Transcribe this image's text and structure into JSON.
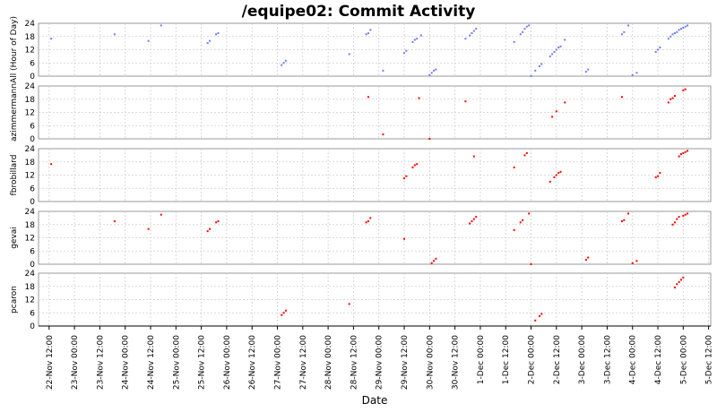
{
  "chart_data": {
    "type": "scatter",
    "title": "/equipe02: Commit Activity",
    "xlabel": "Date",
    "colors": {
      "all": "#6f7cf2",
      "author": "#ff0000"
    },
    "x_ticks": [
      "22-Nov 12:00",
      "23-Nov 00:00",
      "23-Nov 12:00",
      "24-Nov 00:00",
      "24-Nov 12:00",
      "25-Nov 00:00",
      "25-Nov 12:00",
      "26-Nov 00:00",
      "26-Nov 12:00",
      "27-Nov 00:00",
      "27-Nov 12:00",
      "28-Nov 00:00",
      "28-Nov 12:00",
      "29-Nov 00:00",
      "29-Nov 12:00",
      "30-Nov 00:00",
      "30-Nov 12:00",
      "1-Dec 00:00",
      "1-Dec 12:00",
      "2-Dec 00:00",
      "2-Dec 12:00",
      "3-Dec 00:00",
      "3-Dec 12:00",
      "4-Dec 00:00",
      "4-Dec 12:00",
      "5-Dec 00:00",
      "5-Dec 12:00"
    ],
    "x_range": [
      "2008-11-22 07:00",
      "2008-12-05 13:00"
    ],
    "ylim": [
      0,
      24
    ],
    "y_ticks": [
      0,
      6,
      12,
      18,
      24
    ],
    "grid": true,
    "panels": [
      {
        "name": "All (Hour of Day)",
        "color": "all",
        "points": [
          [
            "2008-11-22 13:00",
            17
          ],
          [
            "2008-11-23 19:00",
            19
          ],
          [
            "2008-11-24 11:00",
            16
          ],
          [
            "2008-11-24 17:00",
            23
          ],
          [
            "2008-11-25 15:00",
            15
          ],
          [
            "2008-11-25 16:00",
            16
          ],
          [
            "2008-11-25 19:00",
            19
          ],
          [
            "2008-11-25 20:00",
            19.5
          ],
          [
            "2008-11-27 02:00",
            5
          ],
          [
            "2008-11-27 03:00",
            6
          ],
          [
            "2008-11-27 04:00",
            7
          ],
          [
            "2008-11-28 10:00",
            10
          ],
          [
            "2008-11-28 18:00",
            19
          ],
          [
            "2008-11-28 19:00",
            19.5
          ],
          [
            "2008-11-28 20:00",
            21
          ],
          [
            "2008-11-29 02:00",
            2.5
          ],
          [
            "2008-11-29 12:00",
            10.5
          ],
          [
            "2008-11-29 13:00",
            11.5
          ],
          [
            "2008-11-29 16:00",
            15.5
          ],
          [
            "2008-11-29 17:00",
            16.5
          ],
          [
            "2008-11-29 18:00",
            17
          ],
          [
            "2008-11-29 20:00",
            18.5
          ],
          [
            "2008-11-30 00:00",
            0.5
          ],
          [
            "2008-11-30 01:00",
            1.5
          ],
          [
            "2008-11-30 02:00",
            2.5
          ],
          [
            "2008-11-30 03:00",
            3
          ],
          [
            "2008-11-30 17:00",
            17
          ],
          [
            "2008-11-30 19:00",
            18.5
          ],
          [
            "2008-11-30 20:00",
            19.5
          ],
          [
            "2008-11-30 21:00",
            20.5
          ],
          [
            "2008-11-30 22:00",
            21.5
          ],
          [
            "2008-12-01 16:00",
            15.5
          ],
          [
            "2008-12-01 19:00",
            19
          ],
          [
            "2008-12-01 20:00",
            20
          ],
          [
            "2008-12-01 21:00",
            21.5
          ],
          [
            "2008-12-01 22:00",
            22.5
          ],
          [
            "2008-12-01 23:00",
            23
          ],
          [
            "2008-12-02 00:00",
            0
          ],
          [
            "2008-12-02 02:00",
            2.5
          ],
          [
            "2008-12-02 04:00",
            4.5
          ],
          [
            "2008-12-02 05:00",
            5.5
          ],
          [
            "2008-12-02 09:00",
            9
          ],
          [
            "2008-12-02 10:00",
            10
          ],
          [
            "2008-12-02 11:00",
            11
          ],
          [
            "2008-12-02 12:00",
            12
          ],
          [
            "2008-12-02 13:00",
            13
          ],
          [
            "2008-12-02 14:00",
            13.5
          ],
          [
            "2008-12-02 16:00",
            16.5
          ],
          [
            "2008-12-03 02:00",
            2
          ],
          [
            "2008-12-03 03:00",
            3
          ],
          [
            "2008-12-03 19:00",
            19
          ],
          [
            "2008-12-03 20:00",
            20
          ],
          [
            "2008-12-03 22:00",
            23
          ],
          [
            "2008-12-04 00:00",
            0.5
          ],
          [
            "2008-12-04 02:00",
            1.5
          ],
          [
            "2008-12-04 11:00",
            11
          ],
          [
            "2008-12-04 12:00",
            12
          ],
          [
            "2008-12-04 13:00",
            13
          ],
          [
            "2008-12-04 17:00",
            17
          ],
          [
            "2008-12-04 18:00",
            18
          ],
          [
            "2008-12-04 19:00",
            19
          ],
          [
            "2008-12-04 20:00",
            19.5
          ],
          [
            "2008-12-04 21:00",
            20
          ],
          [
            "2008-12-04 22:00",
            21
          ],
          [
            "2008-12-04 23:00",
            21.5
          ],
          [
            "2008-12-05 00:00",
            22
          ],
          [
            "2008-12-05 01:00",
            22.5
          ],
          [
            "2008-12-05 02:00",
            23
          ]
        ]
      },
      {
        "name": "azimmermann",
        "color": "author",
        "points": [
          [
            "2008-11-28 19:00",
            19
          ],
          [
            "2008-11-29 02:00",
            2
          ],
          [
            "2008-11-29 19:00",
            18.5
          ],
          [
            "2008-11-30 00:00",
            0
          ],
          [
            "2008-11-30 17:00",
            17
          ],
          [
            "2008-12-02 10:00",
            10
          ],
          [
            "2008-12-02 12:00",
            12.5
          ],
          [
            "2008-12-02 16:00",
            16.5
          ],
          [
            "2008-12-03 19:00",
            19
          ],
          [
            "2008-12-04 17:00",
            16.5
          ],
          [
            "2008-12-04 18:00",
            18
          ],
          [
            "2008-12-04 19:00",
            18.5
          ],
          [
            "2008-12-04 20:00",
            19.5
          ],
          [
            "2008-12-05 00:00",
            22
          ],
          [
            "2008-12-05 01:00",
            22.5
          ]
        ]
      },
      {
        "name": "fbrobillard",
        "color": "author",
        "points": [
          [
            "2008-11-22 13:00",
            17
          ],
          [
            "2008-11-29 12:00",
            10.5
          ],
          [
            "2008-11-29 13:00",
            11.5
          ],
          [
            "2008-11-29 16:00",
            15.5
          ],
          [
            "2008-11-29 17:00",
            16.5
          ],
          [
            "2008-11-29 18:00",
            17
          ],
          [
            "2008-11-30 21:00",
            20.5
          ],
          [
            "2008-12-01 16:00",
            15.5
          ],
          [
            "2008-12-01 21:00",
            21
          ],
          [
            "2008-12-01 22:00",
            22
          ],
          [
            "2008-12-02 09:00",
            9
          ],
          [
            "2008-12-02 11:00",
            11
          ],
          [
            "2008-12-02 12:00",
            12
          ],
          [
            "2008-12-02 13:00",
            13
          ],
          [
            "2008-12-02 14:00",
            13.5
          ],
          [
            "2008-12-04 11:00",
            11
          ],
          [
            "2008-12-04 12:00",
            11.5
          ],
          [
            "2008-12-04 13:00",
            13
          ],
          [
            "2008-12-04 22:00",
            20.5
          ],
          [
            "2008-12-04 23:00",
            21.5
          ],
          [
            "2008-12-05 00:00",
            22
          ],
          [
            "2008-12-05 01:00",
            22.5
          ],
          [
            "2008-12-05 02:00",
            23
          ]
        ]
      },
      {
        "name": "gevai",
        "color": "author",
        "points": [
          [
            "2008-11-23 19:00",
            19.5
          ],
          [
            "2008-11-24 11:00",
            16
          ],
          [
            "2008-11-24 17:00",
            22.5
          ],
          [
            "2008-11-25 15:00",
            15
          ],
          [
            "2008-11-25 16:00",
            16
          ],
          [
            "2008-11-25 19:00",
            19
          ],
          [
            "2008-11-25 20:00",
            19.5
          ],
          [
            "2008-11-28 18:00",
            19
          ],
          [
            "2008-11-28 19:00",
            19.5
          ],
          [
            "2008-11-28 20:00",
            21
          ],
          [
            "2008-11-29 12:00",
            11.5
          ],
          [
            "2008-11-30 01:00",
            0.5
          ],
          [
            "2008-11-30 02:00",
            1.5
          ],
          [
            "2008-11-30 03:00",
            2.5
          ],
          [
            "2008-11-30 19:00",
            18.5
          ],
          [
            "2008-11-30 20:00",
            19.5
          ],
          [
            "2008-11-30 21:00",
            20.5
          ],
          [
            "2008-11-30 22:00",
            21.5
          ],
          [
            "2008-12-01 16:00",
            15.5
          ],
          [
            "2008-12-01 19:00",
            19
          ],
          [
            "2008-12-01 20:00",
            20
          ],
          [
            "2008-12-01 23:00",
            23
          ],
          [
            "2008-12-02 00:00",
            0
          ],
          [
            "2008-12-03 02:00",
            2
          ],
          [
            "2008-12-03 03:00",
            3
          ],
          [
            "2008-12-03 19:00",
            19.5
          ],
          [
            "2008-12-03 20:00",
            20
          ],
          [
            "2008-12-03 22:00",
            23
          ],
          [
            "2008-12-04 00:00",
            0.5
          ],
          [
            "2008-12-04 02:00",
            1.5
          ],
          [
            "2008-12-04 19:00",
            18
          ],
          [
            "2008-12-04 20:00",
            19
          ],
          [
            "2008-12-04 21:00",
            20.5
          ],
          [
            "2008-12-04 22:00",
            21.5
          ],
          [
            "2008-12-05 00:00",
            22
          ],
          [
            "2008-12-05 01:00",
            22.5
          ],
          [
            "2008-12-05 02:00",
            23
          ]
        ]
      },
      {
        "name": "pcaron",
        "color": "author",
        "points": [
          [
            "2008-11-27 02:00",
            5
          ],
          [
            "2008-11-27 03:00",
            6
          ],
          [
            "2008-11-27 04:00",
            7
          ],
          [
            "2008-11-28 10:00",
            10
          ],
          [
            "2008-12-02 02:00",
            2.5
          ],
          [
            "2008-12-02 04:00",
            4.5
          ],
          [
            "2008-12-02 05:00",
            5.5
          ],
          [
            "2008-12-04 20:00",
            17.5
          ],
          [
            "2008-12-04 21:00",
            19
          ],
          [
            "2008-12-04 22:00",
            20
          ],
          [
            "2008-12-04 23:00",
            21
          ],
          [
            "2008-12-05 00:00",
            22
          ]
        ]
      }
    ]
  }
}
